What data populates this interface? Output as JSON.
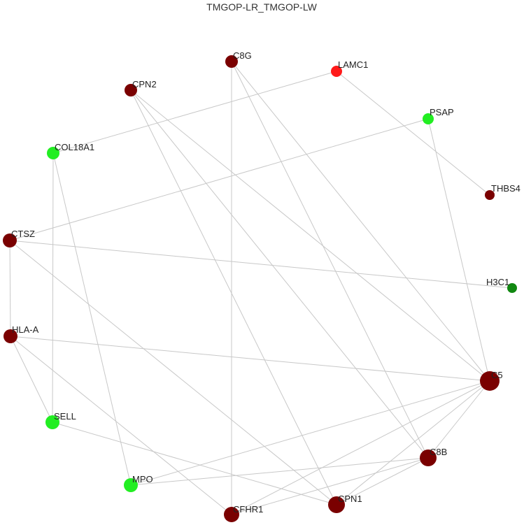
{
  "title": "TMGOP-LR_TMGOP-LW",
  "colors": {
    "dark_red": "#7a0000",
    "red": "#ff1a1a",
    "bright_green": "#22ee22",
    "dark_green": "#118811",
    "edge": "#c8c8c8"
  },
  "nodes": [
    {
      "id": "C8G",
      "label": "C8G",
      "color": "dark_red"
    },
    {
      "id": "LAMC1",
      "label": "LAMC1",
      "color": "red"
    },
    {
      "id": "CPN2",
      "label": "CPN2",
      "color": "dark_red"
    },
    {
      "id": "PSAP",
      "label": "PSAP",
      "color": "bright_green"
    },
    {
      "id": "COL18A1",
      "label": "COL18A1",
      "color": "bright_green"
    },
    {
      "id": "THBS4",
      "label": "THBS4",
      "color": "dark_red"
    },
    {
      "id": "CTSZ",
      "label": "CTSZ",
      "color": "dark_red"
    },
    {
      "id": "H3C1",
      "label": "H3C1",
      "color": "dark_green"
    },
    {
      "id": "HLA-A",
      "label": "HLA-A",
      "color": "dark_red"
    },
    {
      "id": "C5",
      "label": "C5",
      "color": "dark_red"
    },
    {
      "id": "SELL",
      "label": "SELL",
      "color": "bright_green"
    },
    {
      "id": "C8B",
      "label": "C8B",
      "color": "dark_red"
    },
    {
      "id": "MPO",
      "label": "MPO",
      "color": "bright_green"
    },
    {
      "id": "CPN1",
      "label": "CPN1",
      "color": "dark_red"
    },
    {
      "id": "CFHR1",
      "label": "CFHR1",
      "color": "dark_red"
    }
  ],
  "edges": [
    [
      "C8G",
      "CFHR1"
    ],
    [
      "C8G",
      "C8B"
    ],
    [
      "C8G",
      "C5"
    ],
    [
      "LAMC1",
      "COL18A1"
    ],
    [
      "LAMC1",
      "THBS4"
    ],
    [
      "CPN2",
      "CPN1"
    ],
    [
      "CPN2",
      "C8B"
    ],
    [
      "CPN2",
      "C5"
    ],
    [
      "PSAP",
      "CTSZ"
    ],
    [
      "PSAP",
      "C5"
    ],
    [
      "COL18A1",
      "SELL"
    ],
    [
      "COL18A1",
      "MPO"
    ],
    [
      "CTSZ",
      "H3C1"
    ],
    [
      "CTSZ",
      "HLA-A"
    ],
    [
      "CTSZ",
      "CPN1"
    ],
    [
      "HLA-A",
      "C5"
    ],
    [
      "HLA-A",
      "SELL"
    ],
    [
      "HLA-A",
      "CFHR1"
    ],
    [
      "SELL",
      "CPN1"
    ],
    [
      "MPO",
      "C5"
    ],
    [
      "MPO",
      "C8B"
    ],
    [
      "CFHR1",
      "C5"
    ],
    [
      "CFHR1",
      "C8B"
    ],
    [
      "CPN1",
      "C5"
    ],
    [
      "CPN1",
      "C8B"
    ],
    [
      "C8B",
      "C5"
    ]
  ]
}
